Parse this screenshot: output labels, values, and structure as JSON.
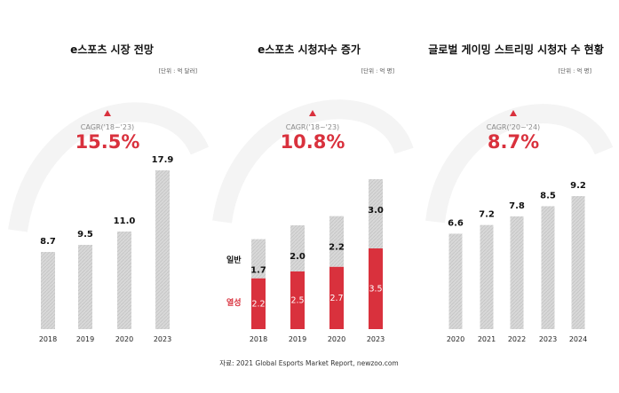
{
  "source": "자료: 2021 Global Esports Market Report, newzoo.com",
  "chart_data": [
    {
      "type": "bar",
      "title": "e스포츠 시장 전망",
      "unit": "[단위 : 억 달러]",
      "cagr_label": "CAGR('18~'23)",
      "cagr_value": "15.5%",
      "categories": [
        "2018",
        "2019",
        "2020",
        "2023"
      ],
      "values": [
        8.7,
        9.5,
        11.0,
        17.9
      ],
      "value_labels": [
        "8.7",
        "9.5",
        "11.0",
        "17.9"
      ],
      "ylim": [
        0,
        20
      ],
      "grid": false,
      "colors": {
        "bar": "#d6d6d6",
        "accent": "#d9313d"
      }
    },
    {
      "type": "bar",
      "stacked": true,
      "title": "e스포츠 시청자수 증가",
      "unit": "[단위 : 억 명]",
      "cagr_label": "CAGR('18~'23)",
      "cagr_value": "10.8%",
      "categories": [
        "2018",
        "2019",
        "2020",
        "2023"
      ],
      "series": [
        {
          "name": "열성",
          "values": [
            2.2,
            2.5,
            2.7,
            3.5
          ],
          "labels": [
            "2.2",
            "2.5",
            "2.7",
            "3.5"
          ],
          "color": "#d9313d"
        },
        {
          "name": "일반",
          "values": [
            1.7,
            2.0,
            2.2,
            3.0
          ],
          "labels": [
            "1.7",
            "2.0",
            "2.2",
            "3.0"
          ],
          "color": "#d6d6d6"
        }
      ],
      "ylim": [
        0,
        7
      ],
      "grid": false
    },
    {
      "type": "bar",
      "title": "글로벌 게이밍 스트리밍 시청자 수 현황",
      "unit": "[단위 : 억 명]",
      "cagr_label": "CAGR('20~'24)",
      "cagr_value": "8.7%",
      "categories": [
        "2020",
        "2021",
        "2022",
        "2023",
        "2024"
      ],
      "values": [
        6.6,
        7.2,
        7.8,
        8.5,
        9.2
      ],
      "value_labels": [
        "6.6",
        "7.2",
        "7.8",
        "8.5",
        "9.2"
      ],
      "ylim": [
        0,
        10
      ],
      "grid": false,
      "colors": {
        "bar": "#d6d6d6",
        "accent": "#d9313d"
      }
    }
  ]
}
